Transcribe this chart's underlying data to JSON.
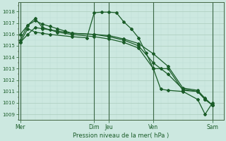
{
  "xlabel": "Pression niveau de la mer( hPa )",
  "bg_color": "#cce8e0",
  "grid_major_color": "#aaccbb",
  "grid_minor_color": "#bbddd4",
  "line_color": "#1a5c28",
  "ylim": [
    1008.5,
    1018.8
  ],
  "yticks": [
    1009,
    1010,
    1011,
    1012,
    1013,
    1014,
    1015,
    1016,
    1017,
    1018
  ],
  "day_labels": [
    "Mer",
    "Dim",
    "Jeu",
    "Ven",
    "Sam"
  ],
  "day_positions": [
    0,
    10,
    12,
    18,
    26
  ],
  "xlim": [
    -0.3,
    27.5
  ],
  "series": [
    {
      "x": [
        0,
        1,
        2,
        3,
        4,
        5,
        6,
        7,
        10,
        12,
        14,
        16,
        18,
        20,
        22,
        24,
        25,
        26
      ],
      "y": [
        1015.3,
        1016.0,
        1016.6,
        1016.5,
        1016.4,
        1016.3,
        1016.2,
        1016.1,
        1016.0,
        1015.9,
        1015.6,
        1015.2,
        1014.3,
        1013.2,
        1011.3,
        1011.1,
        1010.4,
        1009.8
      ]
    },
    {
      "x": [
        0,
        1,
        2,
        3,
        4,
        5,
        6,
        7,
        10,
        12,
        14,
        16,
        18,
        20,
        22,
        24,
        25,
        26
      ],
      "y": [
        1015.5,
        1016.8,
        1017.2,
        1016.9,
        1016.7,
        1016.5,
        1016.3,
        1016.1,
        1016.0,
        1015.8,
        1015.5,
        1015.0,
        1013.5,
        1012.5,
        1011.2,
        1011.0,
        1010.3,
        1009.8
      ]
    },
    {
      "x": [
        0,
        1,
        2,
        3,
        5,
        7,
        10,
        12,
        14,
        16,
        18,
        19,
        20,
        22,
        24,
        25,
        26
      ],
      "y": [
        1016.0,
        1016.8,
        1017.4,
        1016.6,
        1016.2,
        1016.0,
        1015.8,
        1015.6,
        1015.3,
        1014.8,
        1013.0,
        1013.0,
        1013.0,
        1011.1,
        1011.0,
        1010.3,
        1009.8
      ]
    },
    {
      "x": [
        0,
        1,
        2,
        3,
        4,
        7,
        9,
        10,
        11,
        12,
        13,
        14,
        15,
        16,
        17,
        18,
        19,
        20,
        22,
        24,
        25,
        26
      ],
      "y": [
        1015.3,
        1016.5,
        1016.2,
        1016.1,
        1016.0,
        1015.8,
        1015.7,
        1017.9,
        1017.95,
        1017.95,
        1017.9,
        1017.1,
        1016.5,
        1015.7,
        1014.4,
        1013.0,
        1011.2,
        1011.1,
        1011.0,
        1010.3,
        1009.0,
        1010.0
      ]
    }
  ]
}
